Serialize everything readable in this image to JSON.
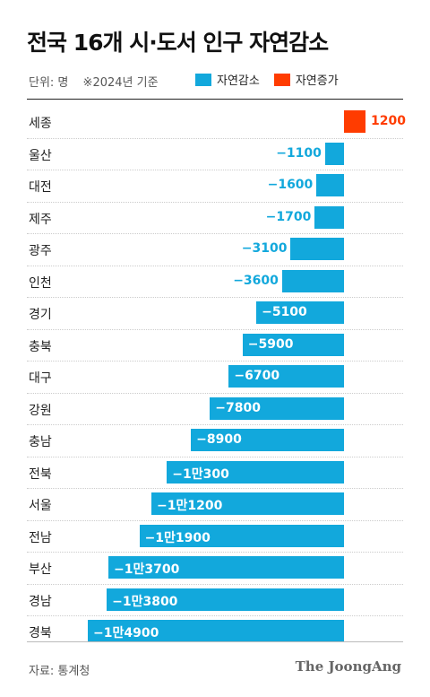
{
  "title": "전국 16개 시·도서 인구 자연감소",
  "meta": {
    "unit": "단위: 명",
    "note": "※2024년 기준"
  },
  "legend": [
    {
      "label": "자연감소",
      "color": "#12a8dc"
    },
    {
      "label": "자연증가",
      "color": "#ff3c00"
    }
  ],
  "source": "자료: 통계청",
  "brand": "The JoongAng",
  "chart_data": {
    "type": "bar",
    "orientation": "horizontal",
    "categories": [
      "세종",
      "울산",
      "대전",
      "제주",
      "광주",
      "인천",
      "경기",
      "충북",
      "대구",
      "강원",
      "충남",
      "전북",
      "서울",
      "전남",
      "부산",
      "경남",
      "경북"
    ],
    "values": [
      1200,
      -1100,
      -1600,
      -1700,
      -3100,
      -3600,
      -5100,
      -5900,
      -6700,
      -7800,
      -8900,
      -10300,
      -11200,
      -11900,
      -13700,
      -13800,
      -14900
    ],
    "labels": [
      "1200",
      "−1100",
      "−1600",
      "−1700",
      "−3100",
      "−3600",
      "−5100",
      "−5900",
      "−6700",
      "−7800",
      "−8900",
      "−1만300",
      "−1만1200",
      "−1만1900",
      "−1만3700",
      "−1만3800",
      "−1만4900"
    ],
    "series": [
      {
        "name": "자연감소",
        "color": "#12a8dc"
      },
      {
        "name": "자연증가",
        "color": "#ff3c00"
      }
    ]
  }
}
